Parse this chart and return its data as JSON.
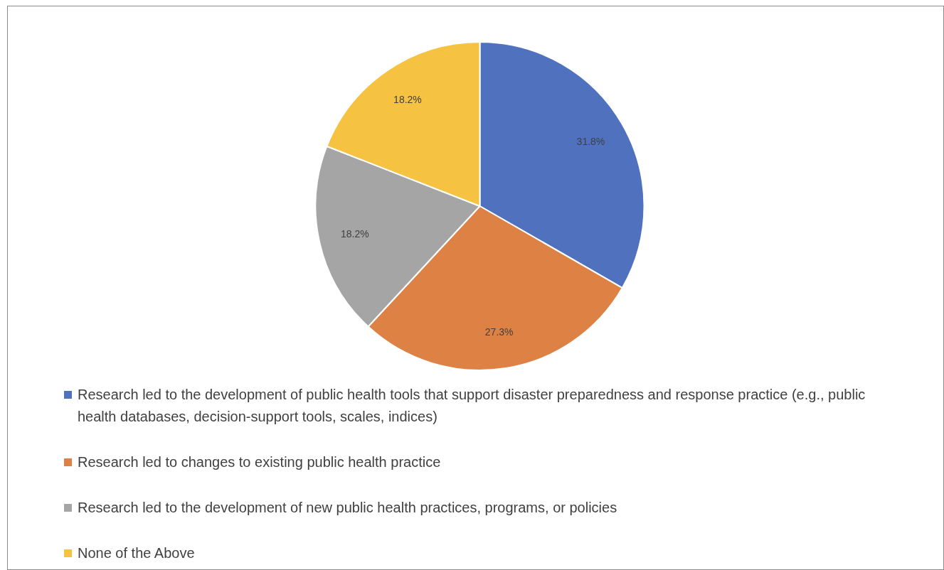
{
  "chart_data": {
    "type": "pie",
    "categories": [
      "Research led to the development of public health tools that support disaster preparedness and response practice (e.g., public health databases, decision-support tools, scales, indices)",
      "Research led to changes to existing public health practice",
      "Research led to the development of new public health practices, programs, or policies",
      "None of the Above"
    ],
    "values": [
      31.8,
      27.3,
      18.2,
      18.2
    ],
    "colors": [
      "#4f71be",
      "#dd8244",
      "#a5a5a5",
      "#f5c242"
    ],
    "value_labels": [
      "31.8%",
      "27.3%",
      "18.2%",
      "18.2%"
    ],
    "legend": "bottom"
  }
}
